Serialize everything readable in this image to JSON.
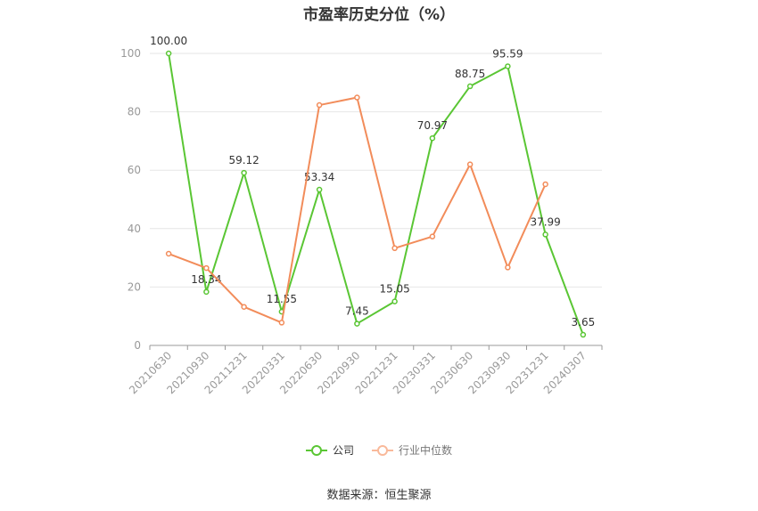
{
  "title": "市盈率历史分位（%）",
  "source": "数据来源：恒生聚源",
  "chart_data": {
    "type": "line",
    "title": "市盈率历史分位（%）",
    "categories": [
      "20210630",
      "20210930",
      "20211231",
      "20220331",
      "20220630",
      "20220930",
      "20221231",
      "20230331",
      "20230630",
      "20230930",
      "20231231",
      "20240307"
    ],
    "ylim": [
      0,
      100
    ],
    "yticks": [
      0,
      20,
      40,
      60,
      80,
      100
    ],
    "grid": true,
    "legend_position": "bottom",
    "series": [
      {
        "name": "公司",
        "color": "#5ac634",
        "values": [
          100.0,
          18.34,
          59.12,
          11.55,
          53.34,
          7.45,
          15.05,
          70.97,
          88.75,
          95.59,
          37.99,
          3.65
        ],
        "labels": [
          "100.00",
          "18.34",
          "59.12",
          "11.55",
          "53.34",
          "7.45",
          "15.05",
          "70.97",
          "88.75",
          "95.59",
          "37.99",
          "3.65"
        ]
      },
      {
        "name": "行业中位数",
        "color": "#f28c5a",
        "values": [
          31.4,
          26.5,
          13.2,
          7.8,
          82.3,
          84.9,
          33.3,
          37.3,
          62.0,
          26.7,
          55.2,
          null
        ]
      }
    ]
  }
}
